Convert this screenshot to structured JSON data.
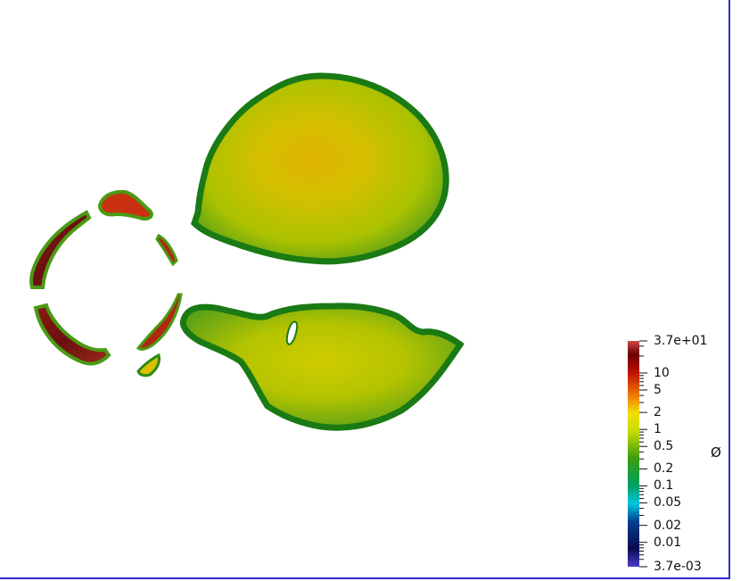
{
  "colorbar": {
    "title": "Ø",
    "scale": "log",
    "range": [
      0.0037,
      37
    ],
    "labels": [
      {
        "text": "3.7e+01",
        "value": 37
      },
      {
        "text": "10",
        "value": 10
      },
      {
        "text": "5",
        "value": 5
      },
      {
        "text": "2",
        "value": 2
      },
      {
        "text": "1",
        "value": 1
      },
      {
        "text": "0.5",
        "value": 0.5
      },
      {
        "text": "0.2",
        "value": 0.2
      },
      {
        "text": "0.1",
        "value": 0.1
      },
      {
        "text": "0.05",
        "value": 0.05
      },
      {
        "text": "0.02",
        "value": 0.02
      },
      {
        "text": "0.01",
        "value": 0.01
      },
      {
        "text": "3.7e-03",
        "value": 0.0037
      }
    ],
    "minor_ticks": [
      20,
      30,
      3,
      4,
      6,
      7,
      8,
      9,
      0.3,
      0.4,
      0.6,
      0.7,
      0.8,
      0.9,
      0.03,
      0.04,
      0.06,
      0.07,
      0.08,
      0.09,
      0.005,
      0.006,
      0.007,
      0.008,
      0.009
    ],
    "colors": [
      {
        "t": 0.0,
        "c": "#4a3cc8"
      },
      {
        "t": 0.08,
        "c": "#0a0a50"
      },
      {
        "t": 0.2,
        "c": "#004090"
      },
      {
        "t": 0.28,
        "c": "#00c8e0"
      },
      {
        "t": 0.36,
        "c": "#00a060"
      },
      {
        "t": 0.48,
        "c": "#3a9e10"
      },
      {
        "t": 0.6,
        "c": "#c8dc00"
      },
      {
        "t": 0.68,
        "c": "#f0e000"
      },
      {
        "t": 0.76,
        "c": "#f07800"
      },
      {
        "t": 0.86,
        "c": "#c01000"
      },
      {
        "t": 0.94,
        "c": "#6a0000"
      },
      {
        "t": 1.0,
        "c": "#cc4c4c"
      }
    ]
  }
}
